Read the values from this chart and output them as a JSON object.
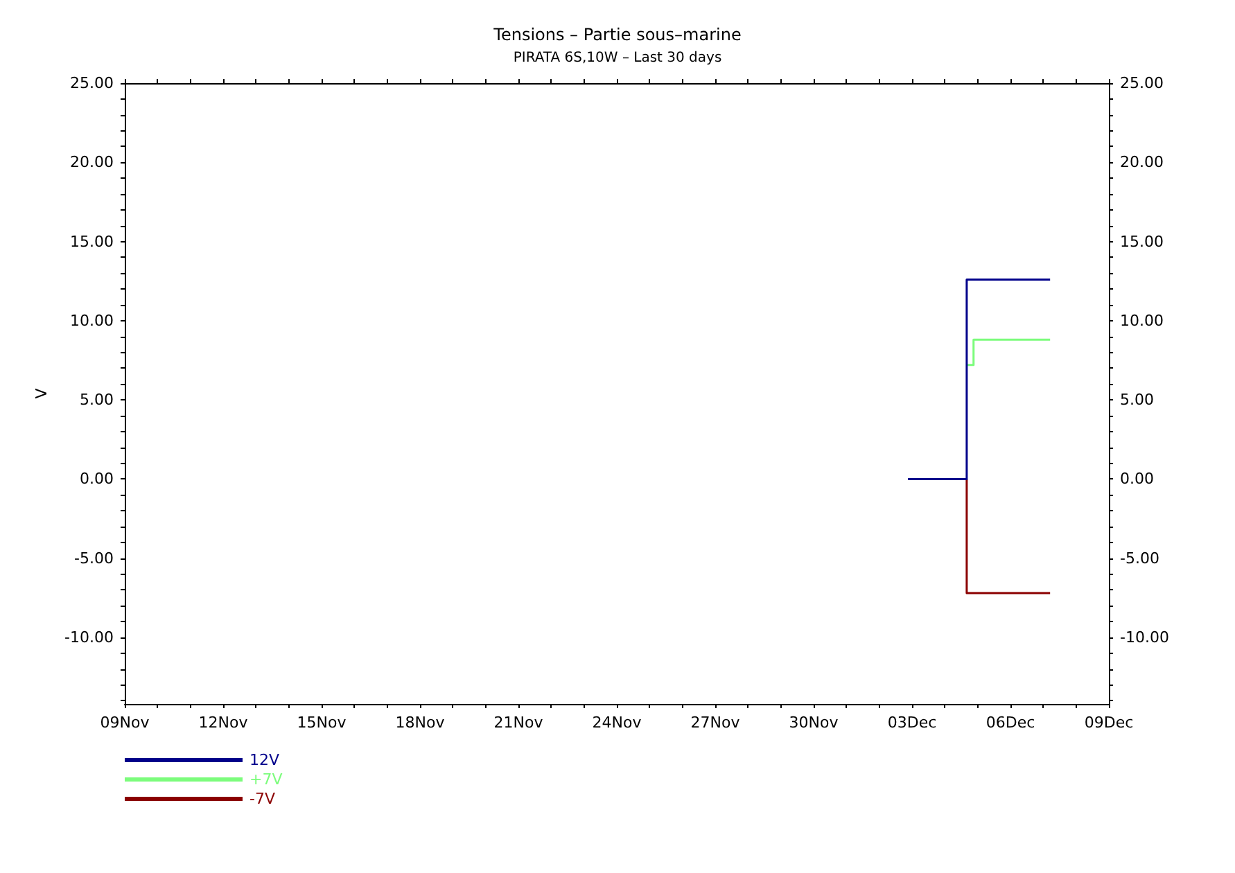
{
  "chart_data": {
    "type": "step",
    "title": "Tensions – Partie sous–marine",
    "subtitle": "PIRATA 6S,10W – Last 30 days",
    "ylabel": "V",
    "xlim": [
      "--11-09",
      "--12-09"
    ],
    "xticks": [
      {
        "value": "--11-09",
        "label": "09Nov"
      },
      {
        "value": "--11-12",
        "label": "12Nov"
      },
      {
        "value": "--11-15",
        "label": "15Nov"
      },
      {
        "value": "--11-18",
        "label": "18Nov"
      },
      {
        "value": "--11-21",
        "label": "21Nov"
      },
      {
        "value": "--11-24",
        "label": "24Nov"
      },
      {
        "value": "--11-27",
        "label": "27Nov"
      },
      {
        "value": "--11-30",
        "label": "30Nov"
      },
      {
        "value": "--12-03",
        "label": "03Dec"
      },
      {
        "value": "--12-06",
        "label": "06Dec"
      },
      {
        "value": "--12-09",
        "label": "09Dec"
      }
    ],
    "ylim": [
      -14.2,
      25
    ],
    "yticks": [
      {
        "value": -10,
        "label": "-10.00"
      },
      {
        "value": -5,
        "label": "-5.00"
      },
      {
        "value": 0,
        "label": "0.00"
      },
      {
        "value": 5,
        "label": "5.00"
      },
      {
        "value": 10,
        "label": "10.00"
      },
      {
        "value": 15,
        "label": "15.00"
      },
      {
        "value": 20,
        "label": "20.00"
      },
      {
        "value": 25,
        "label": "25.00"
      }
    ],
    "y2lim": [
      -14.2,
      25
    ],
    "y2ticks": [
      {
        "value": -10,
        "label": "-10.00"
      },
      {
        "value": -5,
        "label": "-5.00"
      },
      {
        "value": 0,
        "label": "0.00"
      },
      {
        "value": 5,
        "label": "5.00"
      },
      {
        "value": 10,
        "label": "10.00"
      },
      {
        "value": 15,
        "label": "15.00"
      },
      {
        "value": 20,
        "label": "20.00"
      },
      {
        "value": 25,
        "label": "25.00"
      }
    ],
    "grid": false,
    "legend": "bottom left",
    "line_style": "solid",
    "marker": "none",
    "series": [
      {
        "name": "12V",
        "color": "#00008b",
        "x": [
          "--12-02T21:00",
          "--12-04T16:00",
          "--12-07T05:00"
        ],
        "values": [
          0,
          12.6,
          12.6
        ]
      },
      {
        "name": "+7V",
        "color": "#7cfc7c",
        "x": [
          "--12-04T16:00",
          "--12-04T21:00",
          "--12-07T05:00"
        ],
        "values": [
          7.2,
          8.8,
          8.8
        ]
      },
      {
        "name": "-7V",
        "color": "#8b0000",
        "x": [
          "--12-04T16:00",
          "--12-04T16:00",
          "--12-07T05:00"
        ],
        "values": [
          0,
          -7.2,
          -7.2
        ]
      }
    ]
  }
}
